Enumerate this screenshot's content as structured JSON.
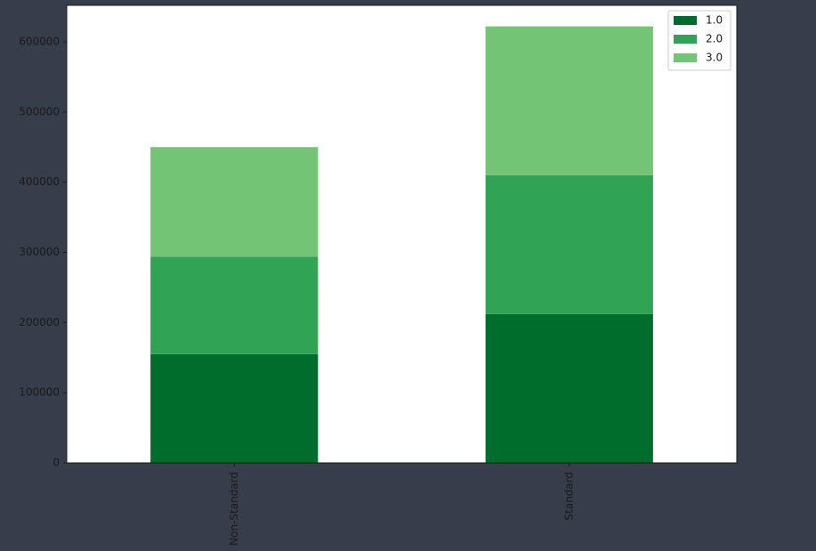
{
  "chart_data": {
    "type": "bar",
    "stacked": true,
    "categories": [
      "Non-Standard",
      "Standard"
    ],
    "series": [
      {
        "name": "1.0",
        "color": "#006d2c",
        "values": [
          155000,
          212000
        ]
      },
      {
        "name": "2.0",
        "color": "#31a354",
        "values": [
          139000,
          198000
        ]
      },
      {
        "name": "3.0",
        "color": "#74c476",
        "values": [
          156000,
          212000
        ]
      }
    ],
    "ylim": [
      0,
      652000
    ],
    "yticks": [
      0,
      100000,
      200000,
      300000,
      400000,
      500000,
      600000
    ],
    "legend": "upper-right"
  }
}
